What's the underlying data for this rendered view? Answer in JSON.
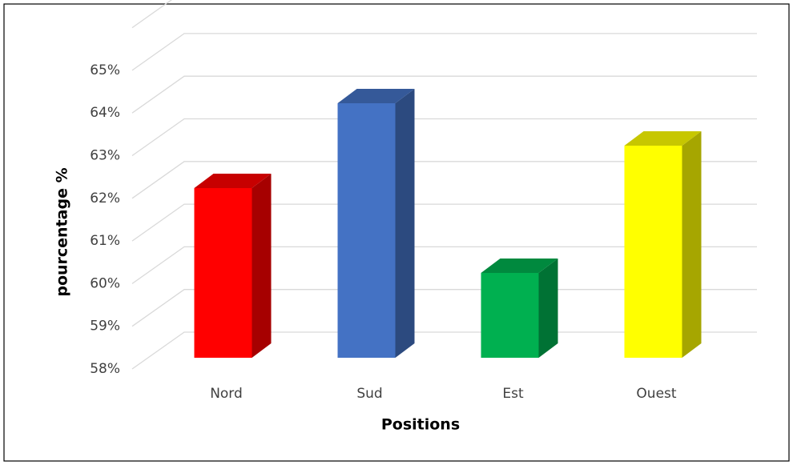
{
  "chart_data": {
    "type": "bar3d",
    "categories": [
      "Nord",
      "Sud",
      "Est",
      "Ouest"
    ],
    "values": [
      62,
      64,
      60,
      63
    ],
    "colors": [
      "#ff0000",
      "#4472c4",
      "#00b050",
      "#ffff00"
    ],
    "xlabel": "Positions",
    "ylabel": "pourcentage %",
    "ylim": [
      58,
      66
    ],
    "yticks": [
      {
        "value": 58,
        "label": "58%"
      },
      {
        "value": 59,
        "label": "59%"
      },
      {
        "value": 60,
        "label": "60%"
      },
      {
        "value": 61,
        "label": "61%"
      },
      {
        "value": 62,
        "label": "62%"
      },
      {
        "value": 63,
        "label": "63%"
      },
      {
        "value": 64,
        "label": "64%"
      },
      {
        "value": 65,
        "label": "65%"
      }
    ],
    "grid": true
  }
}
